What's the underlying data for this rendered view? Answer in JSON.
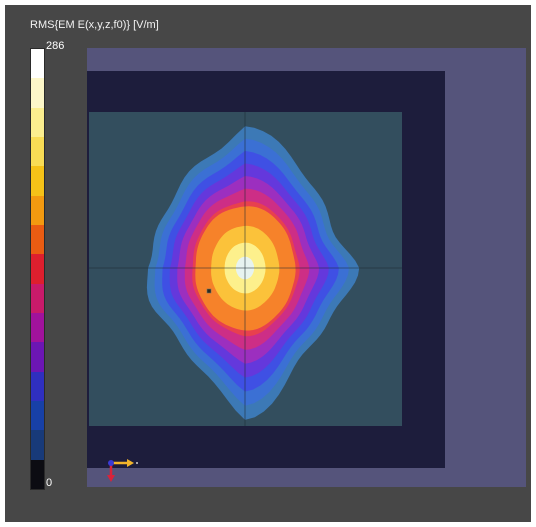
{
  "colorbar": {
    "title": "RMS{EM E(x,y,z,f0)} [V/m]",
    "max_label": "286",
    "min_label": "0",
    "colors": [
      "#ffffff",
      "#fdf7c9",
      "#fbee8f",
      "#f8dc55",
      "#f5c218",
      "#f39a10",
      "#ea5c12",
      "#de1f2e",
      "#c91a6a",
      "#a1129c",
      "#6c16b4",
      "#2f2fbf",
      "#1740a7",
      "#183a79",
      "#0c0c12"
    ]
  },
  "scene": {
    "outer_region_color": "#55547b",
    "inner_region_color": "#1d1d3c",
    "plane_color": "#334e5e",
    "field_levels": [
      {
        "level": 0.1,
        "color": "#3c79b6"
      },
      {
        "level": 0.2,
        "color": "#3b70d4"
      },
      {
        "level": 0.3,
        "color": "#3f50e4"
      },
      {
        "level": 0.4,
        "color": "#6438dc"
      },
      {
        "level": 0.5,
        "color": "#9c2fbf"
      },
      {
        "level": 0.6,
        "color": "#cd2e86"
      },
      {
        "level": 0.7,
        "color": "#e8404e"
      },
      {
        "level": 0.8,
        "color": "#f6822a"
      },
      {
        "level": 0.87,
        "color": "#fbc23a"
      },
      {
        "level": 0.93,
        "color": "#fdf08c"
      },
      {
        "level": 0.98,
        "color": "#e7f3f0"
      }
    ]
  },
  "triad": {
    "y_axis_color": "#f2b52b",
    "z_axis_color": "#d8233a",
    "x_axis_color": "#3a3ad6"
  }
}
